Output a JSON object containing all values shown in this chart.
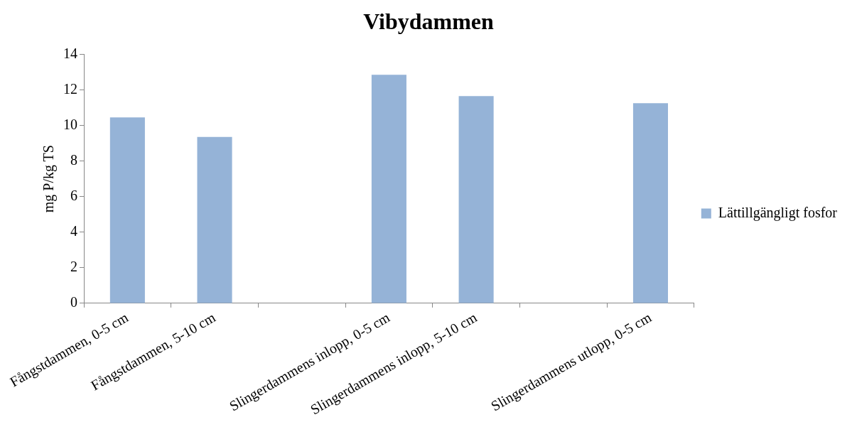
{
  "chart_data": {
    "type": "bar",
    "title": "Vibydammen",
    "ylabel": "mg P/kg TS",
    "categories": [
      "Fångstdammen, 0-5 cm",
      "Fångstdammen, 5-10 cm",
      null,
      "Slingerdammens inlopp, 0-5 cm",
      "Slingerdammens inlopp, 5-10 cm",
      null,
      "Slingerdammens utlopp, 0-5 cm"
    ],
    "series": [
      {
        "name": "Lättillgängligt fosfor",
        "color": "#95b3d7",
        "values": [
          10.45,
          9.35,
          null,
          12.85,
          11.65,
          null,
          11.25
        ]
      }
    ],
    "ylim": [
      0,
      14
    ],
    "yticks": [
      0,
      2,
      4,
      6,
      8,
      10,
      12,
      14
    ],
    "grid": false,
    "legend": "right"
  }
}
